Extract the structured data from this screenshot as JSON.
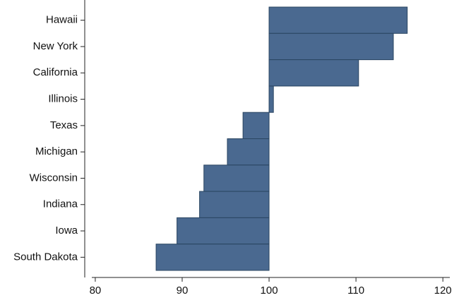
{
  "chart_data": {
    "type": "hbar",
    "categories": [
      "Hawaii",
      "New York",
      "California",
      "Illinois",
      "Texas",
      "Michigan",
      "Wisconsin",
      "Indiana",
      "Iowa",
      "South Dakota"
    ],
    "values": [
      115.9,
      114.3,
      110.3,
      100.5,
      97.0,
      95.2,
      92.5,
      92.0,
      89.4,
      87.0
    ],
    "base": 100,
    "color": "#4a6990",
    "xlim": [
      79.6,
      120.8
    ],
    "xticks": [
      80,
      90,
      100,
      110,
      120
    ],
    "grid": false
  }
}
